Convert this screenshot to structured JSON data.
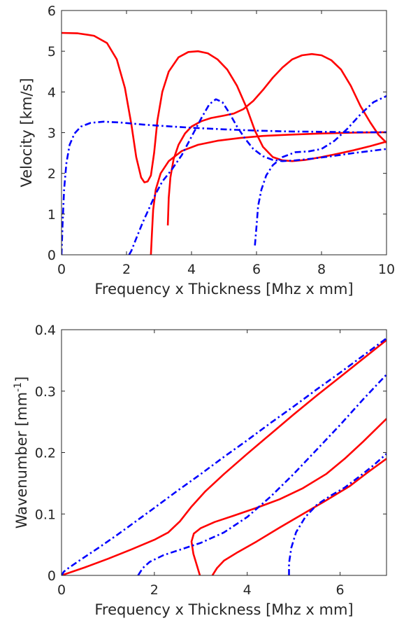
{
  "colors": {
    "red": "#ff0000",
    "blue": "#0000ff",
    "axis": "#262626"
  },
  "chart_data": [
    {
      "type": "line",
      "title": "",
      "xlabel": "Frequency x Thickness [Mhz x mm]",
      "ylabel": "Velocity [km/s]",
      "ylabel_sup": "",
      "ylabel_post": "",
      "xlim": [
        0,
        10
      ],
      "ylim": [
        0,
        6
      ],
      "xticks": [
        0,
        2,
        4,
        6,
        8,
        10
      ],
      "yticks": [
        0,
        1,
        2,
        3,
        4,
        5,
        6
      ],
      "xtick_labels": [
        "0",
        "2",
        "4",
        "6",
        "8",
        "10"
      ],
      "ytick_labels": [
        "0",
        "1",
        "2",
        "3",
        "4",
        "5",
        "6"
      ],
      "grid": false,
      "series": [
        {
          "style": "solid-red",
          "points": [
            [
              0,
              5.45
            ],
            [
              0.5,
              5.44
            ],
            [
              1.0,
              5.38
            ],
            [
              1.4,
              5.2
            ],
            [
              1.7,
              4.8
            ],
            [
              1.95,
              4.1
            ],
            [
              2.15,
              3.2
            ],
            [
              2.3,
              2.4
            ],
            [
              2.45,
              1.9
            ],
            [
              2.55,
              1.78
            ],
            [
              2.65,
              1.8
            ],
            [
              2.75,
              1.95
            ],
            [
              2.85,
              2.5
            ],
            [
              2.95,
              3.3
            ],
            [
              3.1,
              4.0
            ],
            [
              3.3,
              4.5
            ],
            [
              3.6,
              4.85
            ],
            [
              3.9,
              4.98
            ],
            [
              4.2,
              5.0
            ],
            [
              4.5,
              4.95
            ],
            [
              4.8,
              4.8
            ],
            [
              5.1,
              4.55
            ],
            [
              5.4,
              4.15
            ],
            [
              5.7,
              3.6
            ],
            [
              5.95,
              3.05
            ],
            [
              6.2,
              2.65
            ],
            [
              6.5,
              2.4
            ],
            [
              6.8,
              2.32
            ],
            [
              7.1,
              2.3
            ],
            [
              7.5,
              2.33
            ],
            [
              8.0,
              2.4
            ],
            [
              8.5,
              2.48
            ],
            [
              9.0,
              2.57
            ],
            [
              9.5,
              2.67
            ],
            [
              10,
              2.78
            ]
          ]
        },
        {
          "style": "solid-red",
          "points": [
            [
              2.75,
              0
            ],
            [
              2.78,
              0.5
            ],
            [
              2.82,
              1.1
            ],
            [
              2.9,
              1.6
            ],
            [
              3.05,
              2.0
            ],
            [
              3.3,
              2.3
            ],
            [
              3.7,
              2.55
            ],
            [
              4.2,
              2.7
            ],
            [
              4.8,
              2.8
            ],
            [
              5.5,
              2.87
            ],
            [
              6.2,
              2.92
            ],
            [
              7,
              2.95
            ],
            [
              8,
              2.98
            ],
            [
              9,
              3.0
            ],
            [
              10,
              3.01
            ]
          ]
        },
        {
          "style": "solid-red",
          "points": [
            [
              3.27,
              0.72
            ],
            [
              3.3,
              1.4
            ],
            [
              3.35,
              1.9
            ],
            [
              3.45,
              2.35
            ],
            [
              3.6,
              2.7
            ],
            [
              3.8,
              2.98
            ],
            [
              4.0,
              3.15
            ],
            [
              4.3,
              3.28
            ],
            [
              4.6,
              3.36
            ],
            [
              5.0,
              3.42
            ],
            [
              5.3,
              3.47
            ],
            [
              5.6,
              3.58
            ],
            [
              5.9,
              3.78
            ],
            [
              6.2,
              4.05
            ],
            [
              6.5,
              4.35
            ],
            [
              6.8,
              4.6
            ],
            [
              7.1,
              4.8
            ],
            [
              7.4,
              4.9
            ],
            [
              7.7,
              4.93
            ],
            [
              8.0,
              4.9
            ],
            [
              8.3,
              4.78
            ],
            [
              8.6,
              4.55
            ],
            [
              8.9,
              4.15
            ],
            [
              9.2,
              3.65
            ],
            [
              9.5,
              3.25
            ],
            [
              9.75,
              2.95
            ],
            [
              10,
              2.75
            ]
          ]
        },
        {
          "style": "dashdot-blue",
          "points": [
            [
              0,
              0
            ],
            [
              0.03,
              0.7
            ],
            [
              0.08,
              1.6
            ],
            [
              0.15,
              2.25
            ],
            [
              0.25,
              2.7
            ],
            [
              0.4,
              2.98
            ],
            [
              0.6,
              3.15
            ],
            [
              0.9,
              3.24
            ],
            [
              1.3,
              3.27
            ],
            [
              1.8,
              3.25
            ],
            [
              2.5,
              3.2
            ],
            [
              3,
              3.17
            ],
            [
              4,
              3.12
            ],
            [
              5,
              3.08
            ],
            [
              6,
              3.05
            ],
            [
              7,
              3.03
            ],
            [
              8,
              3.02
            ],
            [
              9,
              3.01
            ],
            [
              10,
              3.01
            ]
          ]
        },
        {
          "style": "dashdot-blue",
          "points": [
            [
              2.08,
              0
            ],
            [
              2.15,
              0.1
            ],
            [
              2.3,
              0.4
            ],
            [
              2.5,
              0.8
            ],
            [
              2.7,
              1.15
            ],
            [
              2.9,
              1.5
            ],
            [
              3.1,
              1.8
            ],
            [
              3.4,
              2.1
            ],
            [
              3.7,
              2.45
            ],
            [
              4.0,
              2.9
            ],
            [
              4.3,
              3.35
            ],
            [
              4.55,
              3.7
            ],
            [
              4.75,
              3.82
            ],
            [
              4.95,
              3.75
            ],
            [
              5.15,
              3.5
            ],
            [
              5.4,
              3.15
            ],
            [
              5.65,
              2.85
            ],
            [
              5.9,
              2.6
            ],
            [
              6.2,
              2.42
            ],
            [
              6.5,
              2.33
            ],
            [
              6.8,
              2.3
            ],
            [
              7.2,
              2.32
            ],
            [
              7.7,
              2.36
            ],
            [
              8.3,
              2.42
            ],
            [
              9,
              2.5
            ],
            [
              9.5,
              2.55
            ],
            [
              10,
              2.6
            ]
          ]
        },
        {
          "style": "dashdot-blue",
          "points": [
            [
              5.95,
              0.23
            ],
            [
              6.0,
              0.7
            ],
            [
              6.05,
              1.2
            ],
            [
              6.15,
              1.6
            ],
            [
              6.3,
              1.95
            ],
            [
              6.5,
              2.2
            ],
            [
              6.8,
              2.4
            ],
            [
              7.2,
              2.52
            ],
            [
              7.6,
              2.54
            ],
            [
              8.0,
              2.6
            ],
            [
              8.4,
              2.8
            ],
            [
              8.8,
              3.1
            ],
            [
              9.2,
              3.45
            ],
            [
              9.6,
              3.75
            ],
            [
              10,
              3.9
            ]
          ]
        }
      ]
    },
    {
      "type": "line",
      "title": "",
      "xlabel": "Frequency x Thickness [Mhz x mm]",
      "ylabel": "Wavenumber [mm",
      "ylabel_sup": "-1",
      "ylabel_post": "]",
      "xlim": [
        0,
        7
      ],
      "ylim": [
        0,
        0.4
      ],
      "xticks": [
        0,
        2,
        4,
        6
      ],
      "yticks": [
        0,
        0.1,
        0.2,
        0.3,
        0.4
      ],
      "xtick_labels": [
        "0",
        "2",
        "4",
        "6"
      ],
      "ytick_labels": [
        "0",
        "0.1",
        "0.2",
        "0.3",
        "0.4"
      ],
      "grid": false,
      "series": [
        {
          "style": "solid-red",
          "points": [
            [
              0,
              0
            ],
            [
              0.5,
              0.013
            ],
            [
              1.0,
              0.027
            ],
            [
              1.5,
              0.042
            ],
            [
              2.0,
              0.058
            ],
            [
              2.3,
              0.07
            ],
            [
              2.55,
              0.088
            ],
            [
              2.8,
              0.112
            ],
            [
              3.1,
              0.137
            ],
            [
              3.5,
              0.165
            ],
            [
              4.0,
              0.198
            ],
            [
              4.5,
              0.23
            ],
            [
              5.0,
              0.262
            ],
            [
              5.5,
              0.293
            ],
            [
              6.0,
              0.323
            ],
            [
              6.5,
              0.353
            ],
            [
              7.0,
              0.383
            ]
          ]
        },
        {
          "style": "solid-red",
          "points": [
            [
              2.98,
              0
            ],
            [
              2.92,
              0.015
            ],
            [
              2.84,
              0.035
            ],
            [
              2.8,
              0.055
            ],
            [
              2.85,
              0.068
            ],
            [
              3.0,
              0.077
            ],
            [
              3.3,
              0.087
            ],
            [
              3.7,
              0.097
            ],
            [
              4.2,
              0.11
            ],
            [
              4.7,
              0.124
            ],
            [
              5.2,
              0.142
            ],
            [
              5.7,
              0.165
            ],
            [
              6.1,
              0.19
            ],
            [
              6.5,
              0.218
            ],
            [
              7.0,
              0.255
            ]
          ]
        },
        {
          "style": "solid-red",
          "points": [
            [
              3.25,
              0
            ],
            [
              3.35,
              0.012
            ],
            [
              3.5,
              0.024
            ],
            [
              3.8,
              0.038
            ],
            [
              4.2,
              0.055
            ],
            [
              4.7,
              0.078
            ],
            [
              5.2,
              0.1
            ],
            [
              5.7,
              0.122
            ],
            [
              6.2,
              0.145
            ],
            [
              6.6,
              0.168
            ],
            [
              7.0,
              0.19
            ]
          ]
        },
        {
          "style": "dashdot-blue",
          "points": [
            [
              0,
              0
            ],
            [
              0.05,
              0.006
            ],
            [
              0.15,
              0.012
            ],
            [
              0.4,
              0.025
            ],
            [
              0.8,
              0.045
            ],
            [
              1.2,
              0.066
            ],
            [
              1.6,
              0.088
            ],
            [
              2.0,
              0.11
            ],
            [
              2.5,
              0.138
            ],
            [
              3.0,
              0.165
            ],
            [
              3.5,
              0.193
            ],
            [
              4.0,
              0.22
            ],
            [
              4.5,
              0.248
            ],
            [
              5.0,
              0.275
            ],
            [
              5.5,
              0.303
            ],
            [
              6.0,
              0.33
            ],
            [
              6.5,
              0.358
            ],
            [
              7.0,
              0.386
            ]
          ]
        },
        {
          "style": "dashdot-blue",
          "points": [
            [
              1.65,
              0
            ],
            [
              1.75,
              0.012
            ],
            [
              1.9,
              0.022
            ],
            [
              2.2,
              0.033
            ],
            [
              2.6,
              0.043
            ],
            [
              3.0,
              0.053
            ],
            [
              3.5,
              0.07
            ],
            [
              4.0,
              0.095
            ],
            [
              4.5,
              0.128
            ],
            [
              5.0,
              0.165
            ],
            [
              5.5,
              0.205
            ],
            [
              6.0,
              0.245
            ],
            [
              6.5,
              0.287
            ],
            [
              7.0,
              0.327
            ]
          ]
        },
        {
          "style": "dashdot-blue",
          "points": [
            [
              4.9,
              0
            ],
            [
              4.9,
              0.02
            ],
            [
              4.95,
              0.045
            ],
            [
              5.05,
              0.07
            ],
            [
              5.25,
              0.095
            ],
            [
              5.5,
              0.115
            ],
            [
              5.8,
              0.13
            ],
            [
              6.1,
              0.143
            ],
            [
              6.4,
              0.16
            ],
            [
              6.7,
              0.178
            ],
            [
              7.0,
              0.198
            ]
          ]
        }
      ]
    }
  ]
}
